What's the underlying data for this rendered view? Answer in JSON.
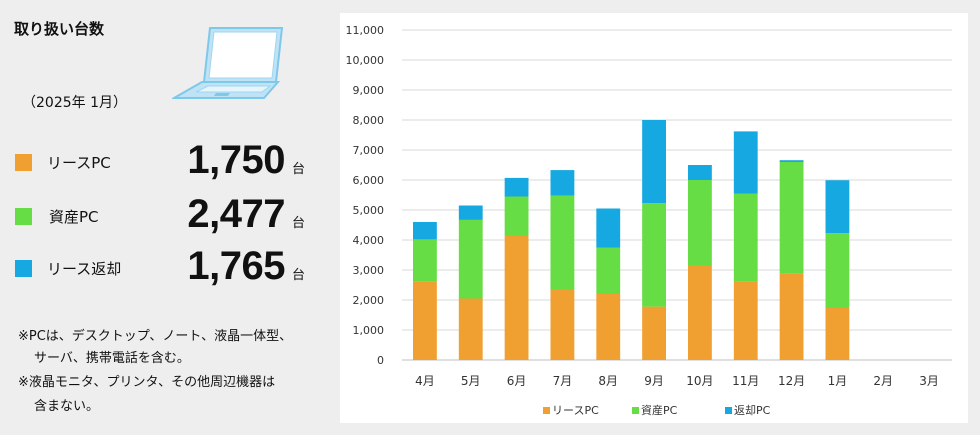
{
  "panel": {
    "title": "取り扱い台数",
    "period": "（2025年 1月）",
    "unit": "台",
    "stats": [
      {
        "label": "リースPC",
        "value": "1,750",
        "color": "#f0a030"
      },
      {
        "label": "資産PC",
        "value": "2,477",
        "color": "#66dd44"
      },
      {
        "label": "リース返却",
        "value": "1,765",
        "color": "#16a8e0"
      }
    ],
    "notes": [
      "※PCは、デスクトップ、ノート、液晶一体型、",
      "サーバ、携帯電話を含む。",
      "※液晶モニタ、プリンタ、その他周辺機器は",
      "含まない。"
    ]
  },
  "chart_data": {
    "type": "bar",
    "stacked": true,
    "categories": [
      "4月",
      "5月",
      "6月",
      "7月",
      "8月",
      "9月",
      "10月",
      "11月",
      "12月",
      "1月",
      "2月",
      "3月"
    ],
    "series": [
      {
        "name": "リースPC",
        "color": "#f0a030",
        "values": [
          2620,
          2050,
          4150,
          2350,
          2200,
          1780,
          3150,
          2620,
          2880,
          1750,
          null,
          null
        ]
      },
      {
        "name": "資産PC",
        "color": "#66dd44",
        "values": [
          1400,
          2620,
          1300,
          3130,
          1550,
          3450,
          2850,
          2930,
          3720,
          2477,
          null,
          null
        ]
      },
      {
        "name": "返却PC",
        "color": "#16a8e0",
        "values": [
          580,
          480,
          620,
          850,
          1300,
          2770,
          500,
          2070,
          60,
          1765,
          null,
          null
        ]
      }
    ],
    "ylim": [
      0,
      11000
    ],
    "yticks": [
      "0",
      "1,000",
      "2,000",
      "3,000",
      "4,000",
      "5,000",
      "6,000",
      "7,000",
      "8,000",
      "9,000",
      "10,000",
      "11,000"
    ],
    "grid": true,
    "legend": "bottom"
  }
}
